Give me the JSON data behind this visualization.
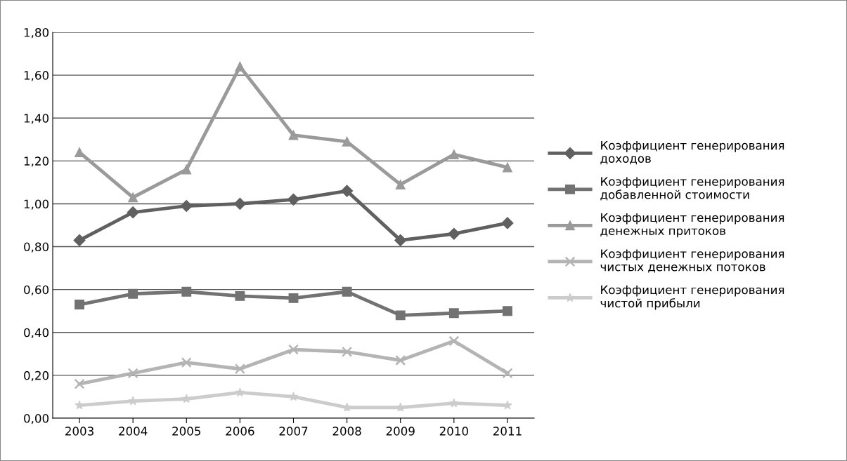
{
  "chart_data": {
    "type": "line",
    "categories": [
      "2003",
      "2004",
      "2005",
      "2006",
      "2007",
      "2008",
      "2009",
      "2010",
      "2011"
    ],
    "series": [
      {
        "name": "Коэффициент генерирования доходов",
        "color": "#606060",
        "marker": "diamond",
        "values": [
          0.83,
          0.96,
          0.99,
          1.0,
          1.02,
          1.06,
          0.83,
          0.86,
          0.91
        ]
      },
      {
        "name": "Коэффициент генерирования добавленной стоимости",
        "color": "#727272",
        "marker": "square",
        "values": [
          0.53,
          0.58,
          0.59,
          0.57,
          0.56,
          0.59,
          0.48,
          0.49,
          0.5
        ]
      },
      {
        "name": "Коэффициент генерирования денежных притоков",
        "color": "#9a9a9a",
        "marker": "triangle",
        "values": [
          1.24,
          1.03,
          1.16,
          1.64,
          1.32,
          1.29,
          1.09,
          1.23,
          1.17
        ]
      },
      {
        "name": "Коэффициент генерирования чистых денежных потоков",
        "color": "#b4b4b4",
        "marker": "cross",
        "values": [
          0.16,
          0.21,
          0.26,
          0.23,
          0.32,
          0.31,
          0.27,
          0.36,
          0.21
        ]
      },
      {
        "name": "Коэффициент генерирования чистой прибыли",
        "color": "#cccccc",
        "marker": "star",
        "values": [
          0.06,
          0.08,
          0.09,
          0.12,
          0.1,
          0.05,
          0.05,
          0.07,
          0.06
        ]
      }
    ],
    "ylim": [
      0,
      1.8
    ],
    "yticks": [
      {
        "value": 0,
        "label": "0,00"
      },
      {
        "value": 0.2,
        "label": "0,20"
      },
      {
        "value": 0.4,
        "label": "0,40"
      },
      {
        "value": 0.6,
        "label": "0,60"
      },
      {
        "value": 0.8,
        "label": "0,80"
      },
      {
        "value": 1.0,
        "label": "1,00"
      },
      {
        "value": 1.2,
        "label": "1,20"
      },
      {
        "value": 1.4,
        "label": "1,40"
      },
      {
        "value": 1.6,
        "label": "1,60"
      },
      {
        "value": 1.8,
        "label": "1,80"
      }
    ],
    "grid": "y",
    "legend": "right",
    "line_style": "solid"
  }
}
